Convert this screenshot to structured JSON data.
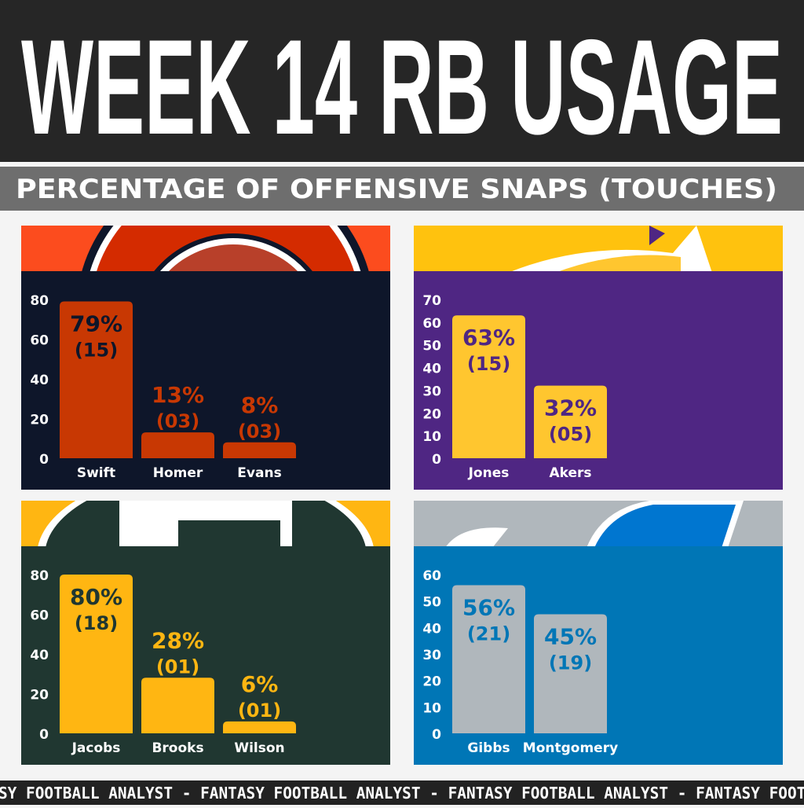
{
  "header": {
    "title": "WEEK 14 RB USAGE",
    "subtitle": "PERCENTAGE OF OFFENSIVE SNAPS (TOUCHES)"
  },
  "footer": {
    "ticker": "SY FOOTBALL ANALYST - FANTASY FOOTBALL ANALYST - FANTASY FOOTBALL ANALYST - FANTASY FOOTB"
  },
  "chart_data": [
    {
      "type": "bar",
      "team_logo": "bears-logo",
      "colors": {
        "header": "#fc4c1e",
        "background": "#0e162a",
        "bar": "#c83803"
      },
      "ylim": [
        0,
        80
      ],
      "yticks": [
        "0",
        "20",
        "40",
        "60",
        "80"
      ],
      "categories": [
        "Swift",
        "Homer",
        "Evans"
      ],
      "values": [
        79,
        13,
        8
      ],
      "value_labels": [
        "79%",
        "13%",
        "8%"
      ],
      "touch_labels": [
        "(15)",
        "(03)",
        "(03)"
      ]
    },
    {
      "type": "bar",
      "team_logo": "vikings-logo",
      "colors": {
        "header": "#ffc20e",
        "background": "#4f2683",
        "bar": "#ffc62f"
      },
      "ylim": [
        0,
        70
      ],
      "yticks": [
        "0",
        "10",
        "20",
        "30",
        "40",
        "50",
        "60",
        "70"
      ],
      "categories": [
        "Jones",
        "Akers"
      ],
      "values": [
        63,
        32
      ],
      "value_labels": [
        "63%",
        "32%"
      ],
      "touch_labels": [
        "(15)",
        "(05)"
      ]
    },
    {
      "type": "bar",
      "team_logo": "packers-logo",
      "colors": {
        "header": "#ffb612",
        "background": "#203731",
        "bar": "#ffb612"
      },
      "ylim": [
        0,
        80
      ],
      "yticks": [
        "0",
        "20",
        "40",
        "60",
        "80"
      ],
      "categories": [
        "Jacobs",
        "Brooks",
        "Wilson"
      ],
      "values": [
        80,
        28,
        6
      ],
      "value_labels": [
        "80%",
        "28%",
        "6%"
      ],
      "touch_labels": [
        "(18)",
        "(01)",
        "(01)"
      ]
    },
    {
      "type": "bar",
      "team_logo": "lions-logo",
      "colors": {
        "header": "#b0b7bc",
        "background": "#0076b6",
        "bar": "#b0b7bc"
      },
      "ylim": [
        0,
        60
      ],
      "yticks": [
        "0",
        "10",
        "20",
        "30",
        "40",
        "50",
        "60"
      ],
      "categories": [
        "Gibbs",
        "Montgomery"
      ],
      "values": [
        56,
        45
      ],
      "value_labels": [
        "56%",
        "45%"
      ],
      "touch_labels": [
        "(21)",
        "(19)"
      ]
    }
  ]
}
